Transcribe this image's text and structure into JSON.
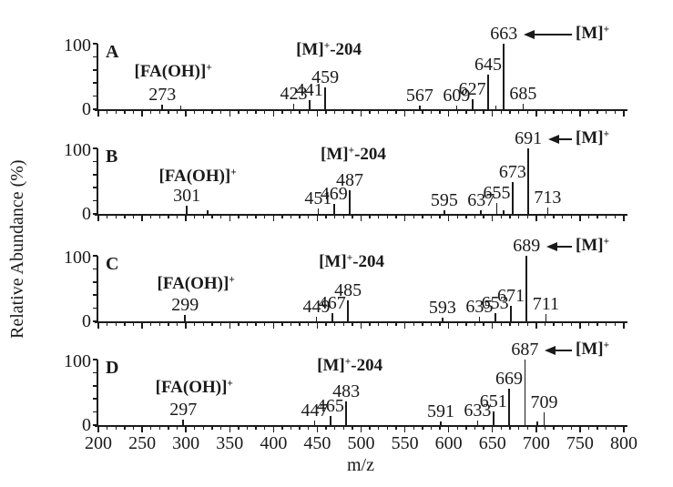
{
  "figure": {
    "ylabel": "Relative Abundance (%)",
    "xlabel": "m/z",
    "y_axis": {
      "max_label": "100",
      "min_label": "0",
      "range": [
        0,
        100
      ],
      "ticks": [
        0,
        20,
        40,
        60,
        80,
        100
      ]
    },
    "x_axis": {
      "range": [
        200,
        800
      ],
      "major_ticks": [
        200,
        250,
        300,
        350,
        400,
        450,
        500,
        550,
        600,
        650,
        700,
        750,
        800
      ],
      "minor_tick_step": 10
    },
    "colors": {
      "background": "#ffffff",
      "ink": "#1a1a1a"
    },
    "annotations": {
      "fa_base": "[FA(OH)]",
      "fa_sup": "+",
      "m204_base": "[M]",
      "m204_sup": "+",
      "m204_suffix": "-204",
      "m_base": "[M]",
      "m_sup": "+"
    }
  },
  "chart_data": [
    {
      "type": "bar",
      "panel": "A",
      "molecular_ion_mz": 663,
      "fa_oh_mz": 273,
      "m_minus_204_mz": 459,
      "xlabel": "m/z",
      "ylabel": "Relative Abundance (%)",
      "xlim": [
        200,
        800
      ],
      "ylim": [
        0,
        100
      ],
      "peaks": [
        {
          "mz": 273,
          "pct": 7,
          "label": "273"
        },
        {
          "mz": 294,
          "pct": 5,
          "label": ""
        },
        {
          "mz": 423,
          "pct": 8,
          "label": "423"
        },
        {
          "mz": 441,
          "pct": 14,
          "label": "441"
        },
        {
          "mz": 459,
          "pct": 33,
          "label": "459"
        },
        {
          "mz": 567,
          "pct": 5,
          "label": "567"
        },
        {
          "mz": 609,
          "pct": 6,
          "label": "609"
        },
        {
          "mz": 627,
          "pct": 15,
          "label": "627"
        },
        {
          "mz": 645,
          "pct": 53,
          "label": "645"
        },
        {
          "mz": 654,
          "pct": 6,
          "label": ""
        },
        {
          "mz": 663,
          "pct": 100,
          "label": "663"
        },
        {
          "mz": 685,
          "pct": 8,
          "label": "685"
        }
      ]
    },
    {
      "type": "bar",
      "panel": "B",
      "molecular_ion_mz": 691,
      "fa_oh_mz": 301,
      "m_minus_204_mz": 487,
      "xlabel": "m/z",
      "ylabel": "Relative Abundance (%)",
      "xlim": [
        200,
        800
      ],
      "ylim": [
        0,
        100
      ],
      "peaks": [
        {
          "mz": 301,
          "pct": 12,
          "label": "301"
        },
        {
          "mz": 325,
          "pct": 6,
          "label": ""
        },
        {
          "mz": 451,
          "pct": 8,
          "label": "451"
        },
        {
          "mz": 469,
          "pct": 15,
          "label": "469"
        },
        {
          "mz": 487,
          "pct": 36,
          "label": "487"
        },
        {
          "mz": 595,
          "pct": 5,
          "label": "595"
        },
        {
          "mz": 637,
          "pct": 6,
          "label": "637"
        },
        {
          "mz": 655,
          "pct": 16,
          "label": "655"
        },
        {
          "mz": 663,
          "pct": 5,
          "label": ""
        },
        {
          "mz": 673,
          "pct": 48,
          "label": "673"
        },
        {
          "mz": 691,
          "pct": 100,
          "label": "691"
        },
        {
          "mz": 713,
          "pct": 10,
          "label": "713"
        }
      ]
    },
    {
      "type": "bar",
      "panel": "C",
      "molecular_ion_mz": 689,
      "fa_oh_mz": 299,
      "m_minus_204_mz": 485,
      "xlabel": "m/z",
      "ylabel": "Relative Abundance (%)",
      "xlim": [
        200,
        800
      ],
      "ylim": [
        0,
        100
      ],
      "peaks": [
        {
          "mz": 299,
          "pct": 10,
          "label": "299"
        },
        {
          "mz": 449,
          "pct": 7,
          "label": "449"
        },
        {
          "mz": 467,
          "pct": 13,
          "label": "467"
        },
        {
          "mz": 485,
          "pct": 32,
          "label": "485"
        },
        {
          "mz": 593,
          "pct": 5,
          "label": "593"
        },
        {
          "mz": 635,
          "pct": 7,
          "label": "635"
        },
        {
          "mz": 653,
          "pct": 12,
          "label": "653"
        },
        {
          "mz": 671,
          "pct": 23,
          "label": "671"
        },
        {
          "mz": 689,
          "pct": 100,
          "label": "689"
        },
        {
          "mz": 711,
          "pct": 11,
          "label": "711"
        }
      ]
    },
    {
      "type": "bar",
      "panel": "D",
      "molecular_ion_mz": 687,
      "fa_oh_mz": 297,
      "m_minus_204_mz": 483,
      "xlabel": "m/z",
      "ylabel": "Relative Abundance (%)",
      "xlim": [
        200,
        800
      ],
      "ylim": [
        0,
        100
      ],
      "peaks": [
        {
          "mz": 297,
          "pct": 8,
          "label": "297"
        },
        {
          "mz": 447,
          "pct": 7,
          "label": "447"
        },
        {
          "mz": 465,
          "pct": 14,
          "label": "465"
        },
        {
          "mz": 483,
          "pct": 36,
          "label": "483"
        },
        {
          "mz": 591,
          "pct": 5,
          "label": "591"
        },
        {
          "mz": 633,
          "pct": 7,
          "label": "633"
        },
        {
          "mz": 651,
          "pct": 21,
          "label": "651"
        },
        {
          "mz": 669,
          "pct": 55,
          "label": "669"
        },
        {
          "mz": 687,
          "pct": 100,
          "label": "687"
        },
        {
          "mz": 701,
          "pct": 5,
          "label": ""
        },
        {
          "mz": 709,
          "pct": 19,
          "label": "709"
        }
      ]
    }
  ]
}
